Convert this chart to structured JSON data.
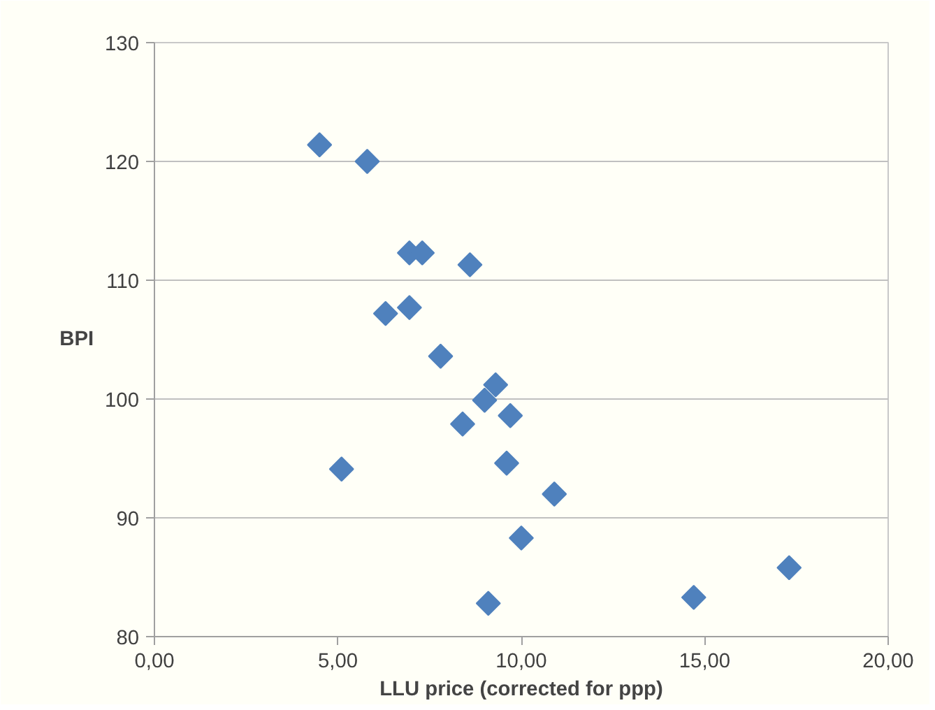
{
  "chart_data": {
    "type": "scatter",
    "xlabel": "LLU price (corrected for ppp)",
    "ylabel": "BPI",
    "xlim": [
      0,
      20
    ],
    "ylim": [
      80,
      130
    ],
    "xticks": [
      {
        "value": 0,
        "label": "0,00"
      },
      {
        "value": 5,
        "label": "5,00"
      },
      {
        "value": 10,
        "label": "10,00"
      },
      {
        "value": 15,
        "label": "15,00"
      },
      {
        "value": 20,
        "label": "20,00"
      }
    ],
    "yticks": [
      80,
      90,
      100,
      110,
      120,
      130
    ],
    "grid": "y",
    "marker": "diamond",
    "series": [
      {
        "color": "#4f81bd",
        "x": [
          4.5,
          5.8,
          6.95,
          7.3,
          8.6,
          6.3,
          6.95,
          7.8,
          5.1,
          8.4,
          9.3,
          9.0,
          9.7,
          9.6,
          10.9,
          10.0,
          9.1,
          14.7,
          17.3
        ],
        "values": [
          121.4,
          120.0,
          112.3,
          112.3,
          111.3,
          107.2,
          107.7,
          103.6,
          94.1,
          97.9,
          101.2,
          99.9,
          98.6,
          94.6,
          92.0,
          88.3,
          82.8,
          83.3,
          85.8
        ]
      }
    ]
  }
}
